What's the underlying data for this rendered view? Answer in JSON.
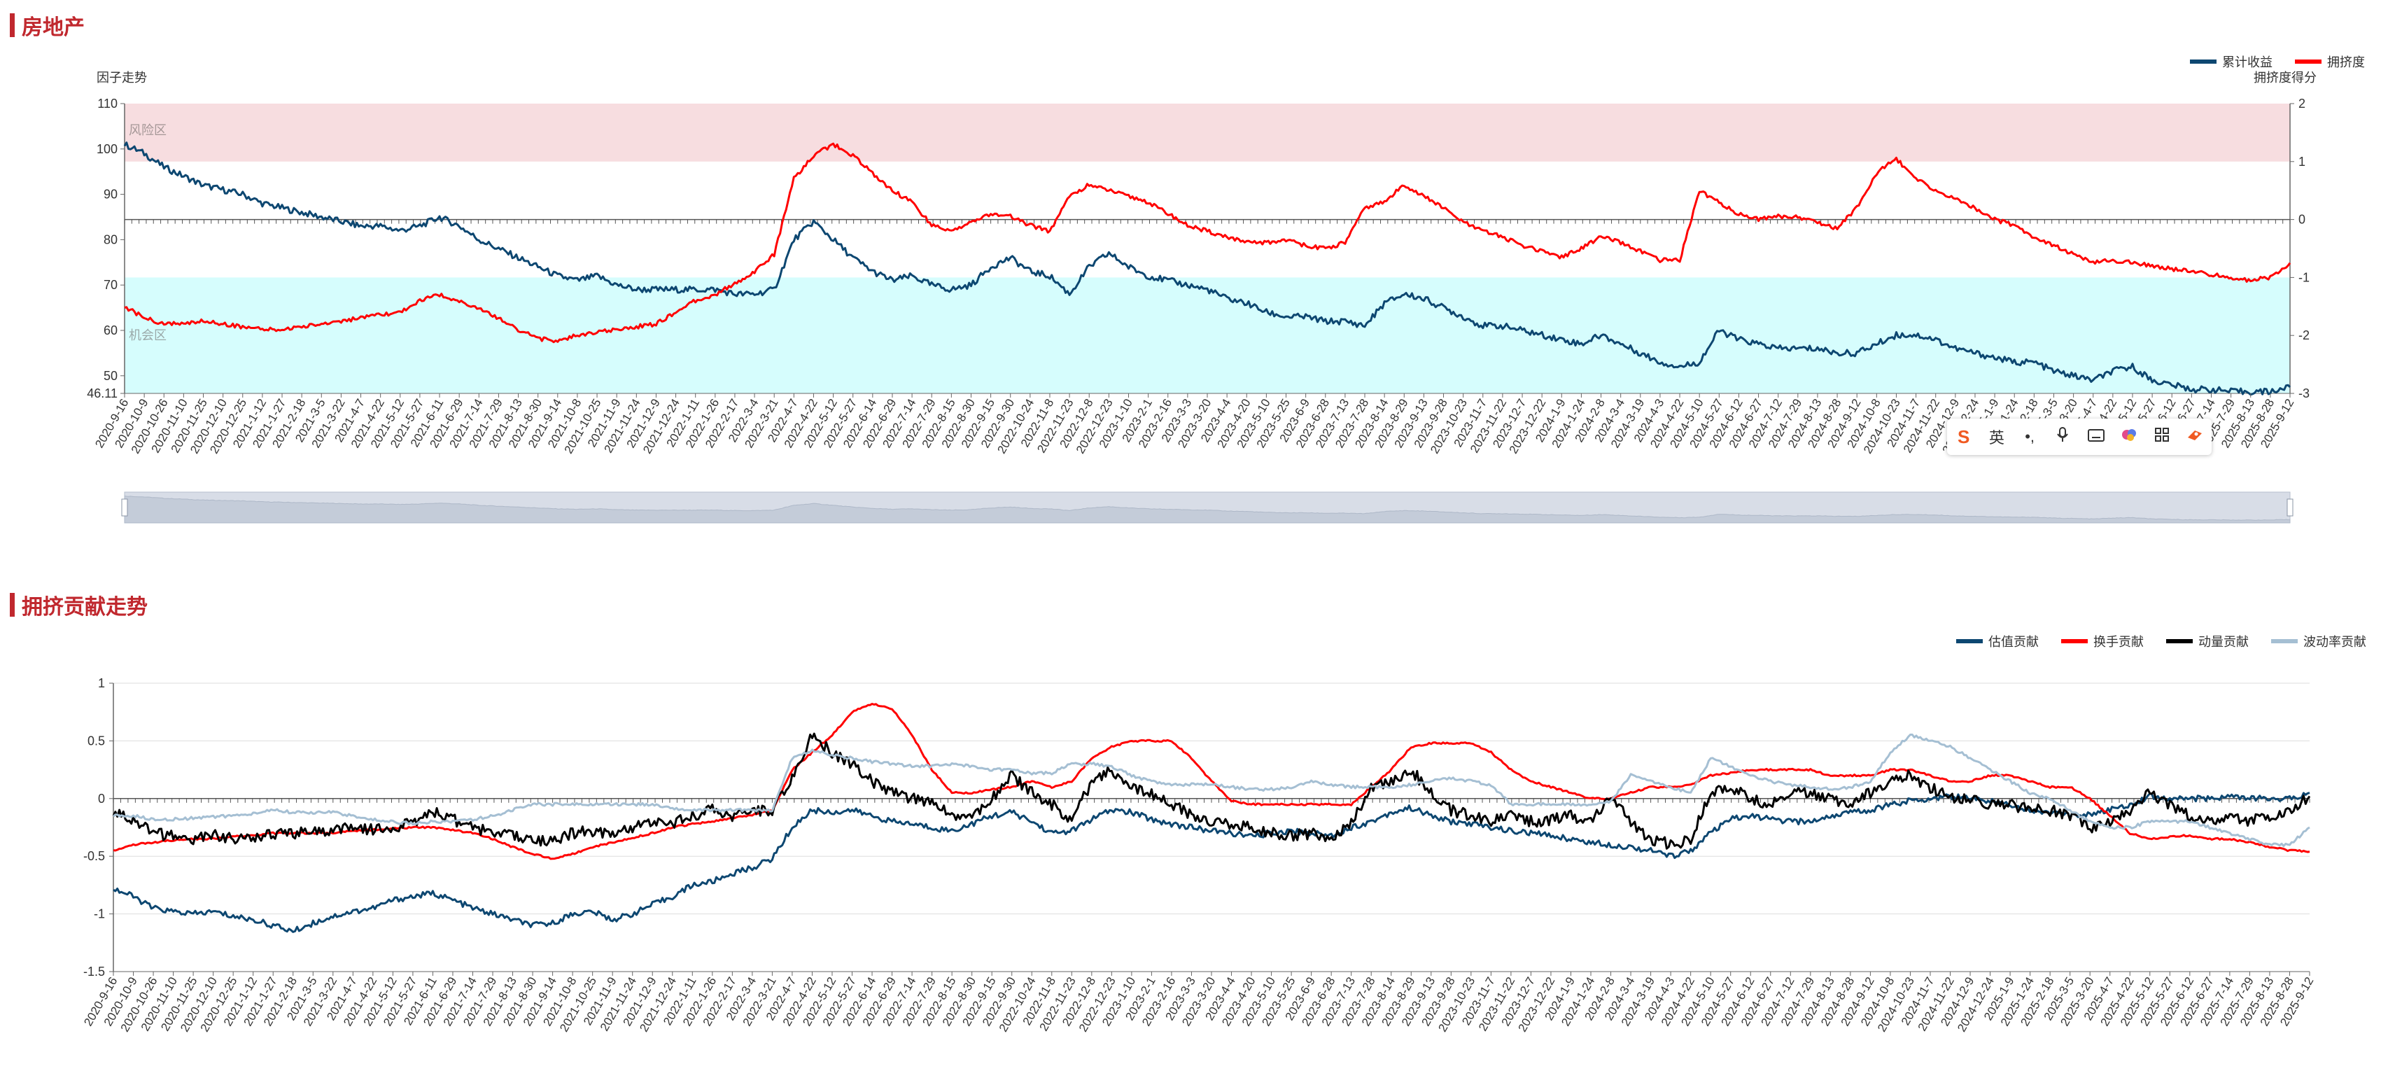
{
  "page": {
    "section1_title": "房地产",
    "section2_title": "拥挤贡献走势"
  },
  "colors": {
    "navy": "#0d4771",
    "red": "#ff0000",
    "black": "#000000",
    "lightblue": "#a5bfd3",
    "title_red": "#c0282e"
  },
  "ime_toolbar": {
    "icons": [
      "sogou-logo-icon",
      "lang-toggle-icon",
      "punctuation-icon",
      "microphone-icon",
      "keyboard-icon",
      "skin-icon",
      "grid-icon",
      "tools-icon"
    ],
    "lang_label": "英"
  },
  "chart_data": [
    {
      "type": "line",
      "left_axis_title": "因子走势",
      "right_axis_title": "拥挤度得分",
      "zone_labels": {
        "risk": "风险区",
        "opportunity": "机会区"
      },
      "ylim_left": [
        46.11,
        110
      ],
      "ylim_right": [
        -3,
        2
      ],
      "left_ticks": [
        "46.11",
        "50",
        "60",
        "70",
        "80",
        "90",
        "100",
        "110"
      ],
      "right_ticks": [
        "-3",
        "-2",
        "-1",
        "0",
        "1",
        "2"
      ],
      "zones": {
        "risk": [
          1,
          2
        ],
        "opportunity": [
          -3,
          -1
        ]
      },
      "dates": [
        "2020-9-16",
        "2020-10-9",
        "2020-10-26",
        "2020-11-10",
        "2020-11-25",
        "2020-12-10",
        "2020-12-25",
        "2021-1-12",
        "2021-1-27",
        "2021-2-18",
        "2021-3-5",
        "2021-3-22",
        "2021-4-7",
        "2021-4-22",
        "2021-5-12",
        "2021-5-27",
        "2021-6-11",
        "2021-6-29",
        "2021-7-14",
        "2021-7-29",
        "2021-8-13",
        "2021-8-30",
        "2021-9-14",
        "2021-10-8",
        "2021-10-25",
        "2021-11-9",
        "2021-11-24",
        "2021-12-9",
        "2021-12-24",
        "2022-1-11",
        "2022-1-26",
        "2022-2-17",
        "2022-3-4",
        "2022-3-21",
        "2022-4-7",
        "2022-4-22",
        "2022-5-12",
        "2022-5-27",
        "2022-6-14",
        "2022-6-29",
        "2022-7-14",
        "2022-7-29",
        "2022-8-15",
        "2022-8-30",
        "2022-9-15",
        "2022-9-30",
        "2022-10-24",
        "2022-11-8",
        "2022-11-23",
        "2022-12-8",
        "2022-12-23",
        "2023-1-10",
        "2023-2-1",
        "2023-2-16",
        "2023-3-3",
        "2023-3-20",
        "2023-4-4",
        "2023-4-20",
        "2023-5-10",
        "2023-5-25",
        "2023-6-9",
        "2023-6-28",
        "2023-7-13",
        "2023-7-28",
        "2023-8-14",
        "2023-8-29",
        "2023-9-13",
        "2023-9-28",
        "2023-10-23",
        "2023-11-7",
        "2023-11-22",
        "2023-12-7",
        "2023-12-22",
        "2024-1-9",
        "2024-1-24",
        "2024-2-8",
        "2024-3-4",
        "2024-3-19",
        "2024-4-3",
        "2024-4-22",
        "2024-5-10",
        "2024-5-27",
        "2024-6-12",
        "2024-6-27",
        "2024-7-12",
        "2024-7-29",
        "2024-8-13",
        "2024-8-28",
        "2024-9-12",
        "2024-10-8",
        "2024-10-23",
        "2024-11-7",
        "2024-11-22",
        "2024-12-9",
        "2024-12-24",
        "2025-1-9",
        "2025-1-24",
        "2025-2-18",
        "2025-3-5",
        "2025-3-20",
        "2025-4-7",
        "2025-4-22",
        "2025-5-12",
        "2025-5-27",
        "2025-6-12",
        "2025-6-27",
        "2025-7-14",
        "2025-7-29",
        "2025-8-13",
        "2025-8-28",
        "2025-9-12"
      ],
      "legend": [
        "累计收益",
        "拥挤度"
      ],
      "series": [
        {
          "name": "累计收益",
          "axis": "left",
          "color": "#0d4771",
          "values": [
            101,
            99,
            96,
            94,
            92,
            91,
            90,
            88,
            87,
            86,
            85,
            84,
            83,
            83,
            82,
            83,
            85,
            83,
            80,
            78,
            76,
            74,
            72,
            71,
            72,
            70,
            69,
            69,
            69,
            69,
            69,
            68,
            68,
            69,
            80,
            84,
            80,
            76,
            73,
            71,
            72,
            70,
            69,
            70,
            74,
            76,
            73,
            72,
            68,
            74,
            77,
            74,
            72,
            71,
            70,
            69,
            67,
            66,
            64,
            63,
            63,
            62,
            62,
            61,
            66,
            68,
            67,
            65,
            63,
            61,
            61,
            60,
            59,
            58,
            57,
            59,
            57,
            55,
            53,
            52,
            53,
            60,
            58,
            57,
            56,
            56,
            56,
            55,
            55,
            57,
            59,
            59,
            58,
            56,
            55,
            54,
            53,
            53,
            51,
            50,
            49,
            51,
            52,
            49,
            48,
            47,
            47,
            46.5,
            46.5,
            46.5,
            47.5
          ]
        },
        {
          "name": "拥挤度",
          "axis": "right",
          "color": "#ff0000",
          "values": [
            -1.5,
            -1.7,
            -1.8,
            -1.8,
            -1.75,
            -1.8,
            -1.85,
            -1.9,
            -1.9,
            -1.85,
            -1.8,
            -1.75,
            -1.7,
            -1.65,
            -1.6,
            -1.4,
            -1.3,
            -1.4,
            -1.55,
            -1.7,
            -1.9,
            -2.05,
            -2.1,
            -2.0,
            -1.95,
            -1.9,
            -1.85,
            -1.8,
            -1.6,
            -1.4,
            -1.3,
            -1.1,
            -0.9,
            -0.6,
            0.7,
            1.1,
            1.3,
            1.1,
            0.8,
            0.5,
            0.3,
            -0.1,
            -0.2,
            -0.05,
            0.1,
            0.05,
            -0.1,
            -0.2,
            0.4,
            0.6,
            0.5,
            0.4,
            0.3,
            0.1,
            -0.1,
            -0.2,
            -0.3,
            -0.4,
            -0.4,
            -0.35,
            -0.45,
            -0.5,
            -0.4,
            0.2,
            0.3,
            0.6,
            0.4,
            0.2,
            -0.05,
            -0.2,
            -0.3,
            -0.45,
            -0.55,
            -0.65,
            -0.5,
            -0.3,
            -0.4,
            -0.55,
            -0.7,
            -0.7,
            0.5,
            0.3,
            0.1,
            0.0,
            0.05,
            0.05,
            -0.05,
            -0.15,
            0.2,
            0.8,
            1.05,
            0.7,
            0.5,
            0.35,
            0.2,
            0.0,
            -0.1,
            -0.3,
            -0.45,
            -0.6,
            -0.75,
            -0.7,
            -0.75,
            -0.8,
            -0.85,
            -0.9,
            -0.95,
            -1.0,
            -1.05,
            -1.0,
            -0.75
          ]
        }
      ]
    },
    {
      "type": "line",
      "ylim": [
        -1.5,
        1
      ],
      "y_ticks": [
        "-1.5",
        "-1",
        "-0.5",
        "0",
        "0.5",
        "1"
      ],
      "dates": [
        "2020-9-16",
        "2020-10-9",
        "2020-10-26",
        "2020-11-10",
        "2020-11-25",
        "2020-12-10",
        "2020-12-25",
        "2021-1-12",
        "2021-1-27",
        "2021-2-18",
        "2021-3-5",
        "2021-3-22",
        "2021-4-7",
        "2021-4-22",
        "2021-5-12",
        "2021-5-27",
        "2021-6-11",
        "2021-6-29",
        "2021-7-14",
        "2021-7-29",
        "2021-8-13",
        "2021-8-30",
        "2021-9-14",
        "2021-10-8",
        "2021-10-25",
        "2021-11-9",
        "2021-11-24",
        "2021-12-9",
        "2021-12-24",
        "2022-1-11",
        "2022-1-26",
        "2022-2-17",
        "2022-3-4",
        "2022-3-21",
        "2022-4-7",
        "2022-4-22",
        "2022-5-12",
        "2022-5-27",
        "2022-6-14",
        "2022-6-29",
        "2022-7-14",
        "2022-7-29",
        "2022-8-15",
        "2022-8-30",
        "2022-9-15",
        "2022-9-30",
        "2022-10-24",
        "2022-11-8",
        "2022-11-23",
        "2022-12-8",
        "2022-12-23",
        "2023-1-10",
        "2023-2-1",
        "2023-2-16",
        "2023-3-3",
        "2023-3-20",
        "2023-4-4",
        "2023-4-20",
        "2023-5-10",
        "2023-5-25",
        "2023-6-9",
        "2023-6-28",
        "2023-7-13",
        "2023-7-28",
        "2023-8-14",
        "2023-8-29",
        "2023-9-13",
        "2023-9-28",
        "2023-10-23",
        "2023-11-7",
        "2023-11-22",
        "2023-12-7",
        "2023-12-22",
        "2024-1-9",
        "2024-1-24",
        "2024-2-8",
        "2024-3-4",
        "2024-3-19",
        "2024-4-3",
        "2024-4-22",
        "2024-5-10",
        "2024-5-27",
        "2024-6-12",
        "2024-6-27",
        "2024-7-12",
        "2024-7-29",
        "2024-8-13",
        "2024-8-28",
        "2024-9-12",
        "2024-10-8",
        "2024-10-23",
        "2024-11-7",
        "2024-11-22",
        "2024-12-9",
        "2024-12-24",
        "2025-1-9",
        "2025-1-24",
        "2025-2-18",
        "2025-3-5",
        "2025-3-20",
        "2025-4-7",
        "2025-4-22",
        "2025-5-12",
        "2025-5-27",
        "2025-6-12",
        "2025-6-27",
        "2025-7-14",
        "2025-7-29",
        "2025-8-13",
        "2025-8-28",
        "2025-9-12"
      ],
      "legend": [
        "估值贡献",
        "换手贡献",
        "动量贡献",
        "波动率贡献"
      ],
      "series": [
        {
          "name": "估值贡献",
          "color": "#0d4771",
          "values": [
            -0.78,
            -0.85,
            -0.95,
            -0.98,
            -1.0,
            -0.98,
            -1.02,
            -1.05,
            -1.1,
            -1.15,
            -1.08,
            -1.02,
            -0.98,
            -0.95,
            -0.88,
            -0.85,
            -0.82,
            -0.88,
            -0.95,
            -1.0,
            -1.05,
            -1.1,
            -1.08,
            -1.0,
            -0.98,
            -1.05,
            -1.0,
            -0.92,
            -0.85,
            -0.75,
            -0.72,
            -0.65,
            -0.6,
            -0.52,
            -0.25,
            -0.1,
            -0.12,
            -0.1,
            -0.15,
            -0.2,
            -0.22,
            -0.25,
            -0.28,
            -0.22,
            -0.15,
            -0.12,
            -0.2,
            -0.3,
            -0.28,
            -0.18,
            -0.1,
            -0.12,
            -0.18,
            -0.22,
            -0.25,
            -0.28,
            -0.3,
            -0.33,
            -0.3,
            -0.28,
            -0.3,
            -0.32,
            -0.25,
            -0.2,
            -0.12,
            -0.08,
            -0.15,
            -0.2,
            -0.22,
            -0.25,
            -0.28,
            -0.3,
            -0.32,
            -0.35,
            -0.38,
            -0.4,
            -0.42,
            -0.45,
            -0.5,
            -0.45,
            -0.3,
            -0.18,
            -0.15,
            -0.18,
            -0.2,
            -0.2,
            -0.15,
            -0.12,
            -0.1,
            -0.05,
            -0.02,
            0.0,
            0.02,
            0.0,
            -0.02,
            -0.05,
            -0.1,
            -0.12,
            -0.15,
            -0.13,
            -0.1,
            -0.05,
            0.02,
            0.0,
            0.0,
            0.0,
            0.02,
            0.0,
            0.0,
            0.0,
            0.05
          ]
        },
        {
          "name": "换手贡献",
          "color": "#ff0000",
          "values": [
            -0.45,
            -0.4,
            -0.38,
            -0.36,
            -0.35,
            -0.35,
            -0.33,
            -0.32,
            -0.3,
            -0.3,
            -0.3,
            -0.3,
            -0.28,
            -0.27,
            -0.26,
            -0.25,
            -0.25,
            -0.27,
            -0.3,
            -0.35,
            -0.42,
            -0.48,
            -0.52,
            -0.48,
            -0.42,
            -0.38,
            -0.34,
            -0.3,
            -0.25,
            -0.22,
            -0.2,
            -0.17,
            -0.14,
            -0.1,
            0.25,
            0.4,
            0.55,
            0.75,
            0.82,
            0.78,
            0.55,
            0.25,
            0.05,
            0.05,
            0.08,
            0.1,
            0.15,
            0.1,
            0.15,
            0.35,
            0.45,
            0.5,
            0.5,
            0.5,
            0.35,
            0.15,
            -0.02,
            -0.05,
            -0.05,
            -0.05,
            -0.05,
            -0.05,
            -0.05,
            0.1,
            0.25,
            0.45,
            0.48,
            0.48,
            0.48,
            0.4,
            0.25,
            0.15,
            0.1,
            0.05,
            0.0,
            0.0,
            0.05,
            0.1,
            0.1,
            0.12,
            0.2,
            0.22,
            0.25,
            0.25,
            0.25,
            0.25,
            0.2,
            0.2,
            0.2,
            0.25,
            0.25,
            0.2,
            0.15,
            0.15,
            0.2,
            0.2,
            0.15,
            0.1,
            0.1,
            0.0,
            -0.15,
            -0.3,
            -0.35,
            -0.33,
            -0.32,
            -0.35,
            -0.35,
            -0.38,
            -0.42,
            -0.45,
            -0.46
          ]
        },
        {
          "name": "动量贡献",
          "color": "#000000",
          "values": [
            -0.12,
            -0.2,
            -0.3,
            -0.33,
            -0.36,
            -0.32,
            -0.35,
            -0.35,
            -0.3,
            -0.3,
            -0.28,
            -0.27,
            -0.25,
            -0.27,
            -0.25,
            -0.2,
            -0.12,
            -0.18,
            -0.25,
            -0.3,
            -0.32,
            -0.35,
            -0.38,
            -0.3,
            -0.28,
            -0.32,
            -0.25,
            -0.2,
            -0.22,
            -0.15,
            -0.1,
            -0.15,
            -0.12,
            -0.1,
            0.2,
            0.55,
            0.4,
            0.3,
            0.15,
            0.05,
            0.0,
            -0.05,
            -0.15,
            -0.18,
            0.0,
            0.2,
            0.05,
            -0.05,
            -0.2,
            0.15,
            0.25,
            0.1,
            0.05,
            -0.05,
            -0.15,
            -0.2,
            -0.22,
            -0.25,
            -0.3,
            -0.32,
            -0.3,
            -0.35,
            -0.2,
            0.1,
            0.15,
            0.25,
            0.05,
            -0.1,
            -0.15,
            -0.2,
            -0.15,
            -0.2,
            -0.18,
            -0.15,
            -0.2,
            0.0,
            -0.2,
            -0.35,
            -0.4,
            -0.35,
            0.05,
            0.1,
            0.0,
            -0.05,
            0.05,
            0.05,
            0.0,
            -0.05,
            0.05,
            0.15,
            0.2,
            0.1,
            0.0,
            0.0,
            -0.05,
            -0.05,
            -0.1,
            -0.1,
            -0.15,
            -0.25,
            -0.2,
            -0.1,
            0.05,
            -0.05,
            -0.15,
            -0.2,
            -0.15,
            -0.2,
            -0.15,
            -0.12,
            0.02
          ]
        },
        {
          "name": "波动率贡献",
          "color": "#a5bfd3",
          "values": [
            -0.15,
            -0.15,
            -0.18,
            -0.18,
            -0.17,
            -0.16,
            -0.15,
            -0.13,
            -0.1,
            -0.12,
            -0.12,
            -0.12,
            -0.15,
            -0.18,
            -0.2,
            -0.22,
            -0.2,
            -0.2,
            -0.18,
            -0.15,
            -0.1,
            -0.05,
            -0.05,
            -0.05,
            -0.05,
            -0.05,
            -0.05,
            -0.05,
            -0.08,
            -0.1,
            -0.1,
            -0.1,
            -0.1,
            -0.1,
            0.35,
            0.42,
            0.38,
            0.35,
            0.32,
            0.3,
            0.28,
            0.28,
            0.3,
            0.28,
            0.25,
            0.25,
            0.22,
            0.22,
            0.3,
            0.3,
            0.28,
            0.2,
            0.15,
            0.12,
            0.12,
            0.12,
            0.1,
            0.08,
            0.08,
            0.1,
            0.15,
            0.12,
            0.1,
            0.1,
            0.1,
            0.12,
            0.15,
            0.18,
            0.15,
            0.12,
            -0.05,
            -0.05,
            -0.05,
            -0.05,
            -0.05,
            -0.02,
            0.2,
            0.15,
            0.1,
            0.05,
            0.35,
            0.28,
            0.2,
            0.15,
            0.12,
            0.1,
            0.08,
            0.1,
            0.15,
            0.4,
            0.55,
            0.5,
            0.45,
            0.35,
            0.25,
            0.15,
            0.05,
            0.0,
            -0.1,
            -0.2,
            -0.25,
            -0.25,
            -0.2,
            -0.2,
            -0.2,
            -0.25,
            -0.3,
            -0.35,
            -0.4,
            -0.4,
            -0.25
          ]
        }
      ]
    }
  ]
}
